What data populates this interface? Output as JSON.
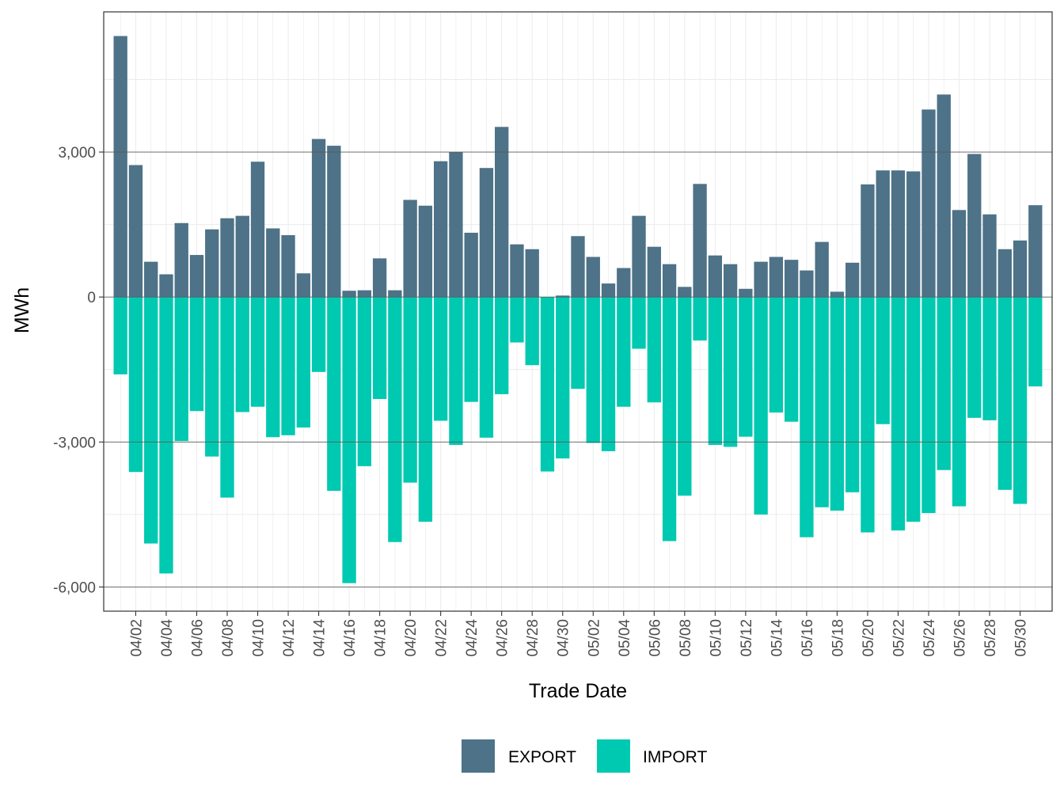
{
  "colors": {
    "export": "#4E7287",
    "import": "#00C9B1",
    "major_grid": "#5a5a5a",
    "minor_grid": "#ebebeb",
    "panel_border": "#333333"
  },
  "chart_data": {
    "type": "bar",
    "stacking": "diverging",
    "title": "",
    "xlabel": "Trade Date",
    "ylabel": "MWh",
    "ylim": [
      -6500,
      5900
    ],
    "yticks": [
      -6000,
      -3000,
      0,
      3000
    ],
    "ytick_labels": [
      "-6,000",
      "-3,000",
      "0",
      "3,000"
    ],
    "categories": [
      "04/01",
      "04/02",
      "04/03",
      "04/04",
      "04/05",
      "04/06",
      "04/07",
      "04/08",
      "04/09",
      "04/10",
      "04/11",
      "04/12",
      "04/13",
      "04/14",
      "04/15",
      "04/16",
      "04/17",
      "04/18",
      "04/19",
      "04/20",
      "04/21",
      "04/22",
      "04/23",
      "04/24",
      "04/25",
      "04/26",
      "04/27",
      "04/28",
      "04/29",
      "04/30",
      "05/01",
      "05/02",
      "05/03",
      "05/04",
      "05/05",
      "05/06",
      "05/07",
      "05/08",
      "05/09",
      "05/10",
      "05/11",
      "05/12",
      "05/13",
      "05/14",
      "05/15",
      "05/16",
      "05/17",
      "05/18",
      "05/19",
      "05/20",
      "05/21",
      "05/22",
      "05/23",
      "05/24",
      "05/25",
      "05/26",
      "05/27",
      "05/28",
      "05/29",
      "05/30",
      "05/31"
    ],
    "xtick_labels": [
      "04/02",
      "04/04",
      "04/06",
      "04/08",
      "04/10",
      "04/12",
      "04/14",
      "04/16",
      "04/18",
      "04/20",
      "04/22",
      "04/24",
      "04/26",
      "04/28",
      "04/30",
      "05/02",
      "05/04",
      "05/06",
      "05/08",
      "05/10",
      "05/12",
      "05/14",
      "05/16",
      "05/18",
      "05/20",
      "05/22",
      "05/24",
      "05/26",
      "05/28",
      "05/30"
    ],
    "series": [
      {
        "name": "EXPORT",
        "values": [
          5400,
          2730,
          730,
          470,
          1530,
          870,
          1400,
          1630,
          1680,
          2800,
          1420,
          1280,
          490,
          3270,
          3130,
          130,
          140,
          800,
          140,
          2010,
          1890,
          2810,
          3000,
          1330,
          2670,
          3520,
          1090,
          990,
          0,
          30,
          1260,
          830,
          280,
          600,
          1680,
          1040,
          680,
          210,
          2340,
          860,
          680,
          170,
          730,
          830,
          770,
          550,
          1140,
          110,
          710,
          2330,
          2620,
          2620,
          2600,
          3880,
          4190,
          1800,
          2960,
          1710,
          990,
          1170,
          1900
        ]
      },
      {
        "name": "IMPORT",
        "values": [
          -1600,
          -3620,
          -5100,
          -5720,
          -2980,
          -2360,
          -3300,
          -4150,
          -2380,
          -2270,
          -2900,
          -2860,
          -2700,
          -1550,
          -4010,
          -5920,
          -3500,
          -2110,
          -5070,
          -3840,
          -4650,
          -2560,
          -3060,
          -2170,
          -2910,
          -2010,
          -940,
          -1410,
          -3610,
          -3340,
          -1900,
          -3020,
          -3190,
          -2270,
          -1070,
          -2180,
          -5050,
          -4110,
          -900,
          -3060,
          -3100,
          -2890,
          -4500,
          -2390,
          -2580,
          -4970,
          -4350,
          -4420,
          -4040,
          -4870,
          -2630,
          -4830,
          -4650,
          -4470,
          -3580,
          -4330,
          -2500,
          -2550,
          -3990,
          -4280,
          -1850
        ]
      }
    ],
    "legend": {
      "position": "bottom",
      "entries": [
        "EXPORT",
        "IMPORT"
      ]
    },
    "grid": true
  }
}
